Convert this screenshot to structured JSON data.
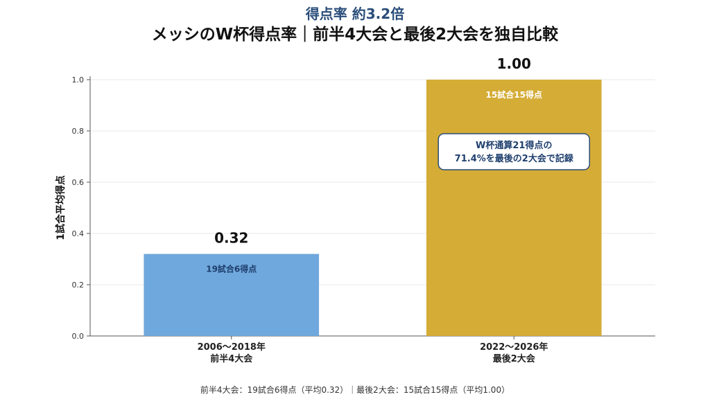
{
  "chart_data": {
    "type": "bar",
    "subtitle": "得点率 約3.2倍",
    "title": "メッシのW杯得点率｜前半4大会と最後2大会を独自比較",
    "ylabel": "1試合平均得点",
    "xlabel": "",
    "ylim": [
      0,
      1.0
    ],
    "yticks": [
      "0.0",
      "0.2",
      "0.4",
      "0.6",
      "0.8",
      "1.0"
    ],
    "grid": true,
    "categories": [
      [
        "2006〜2018年",
        "前半4大会"
      ],
      [
        "2022〜2026年",
        "最後2大会"
      ]
    ],
    "values": [
      0.32,
      1.0
    ],
    "value_labels": [
      "0.32",
      "1.00"
    ],
    "bar_inner_labels": [
      "19試合6得点",
      "15試合15得点"
    ],
    "colors": [
      "#6fa8dc",
      "#d4ac36"
    ],
    "inner_label_colors": [
      "#1f3f6e",
      "#ffffff"
    ],
    "annotation": {
      "lines": [
        "W杯通算21得点の",
        "71.4%を最後の2大会で記録"
      ]
    },
    "footer": "前半4大会：19試合6得点（平均0.32）｜最後2大会：15試合15得点（平均1.00）"
  }
}
